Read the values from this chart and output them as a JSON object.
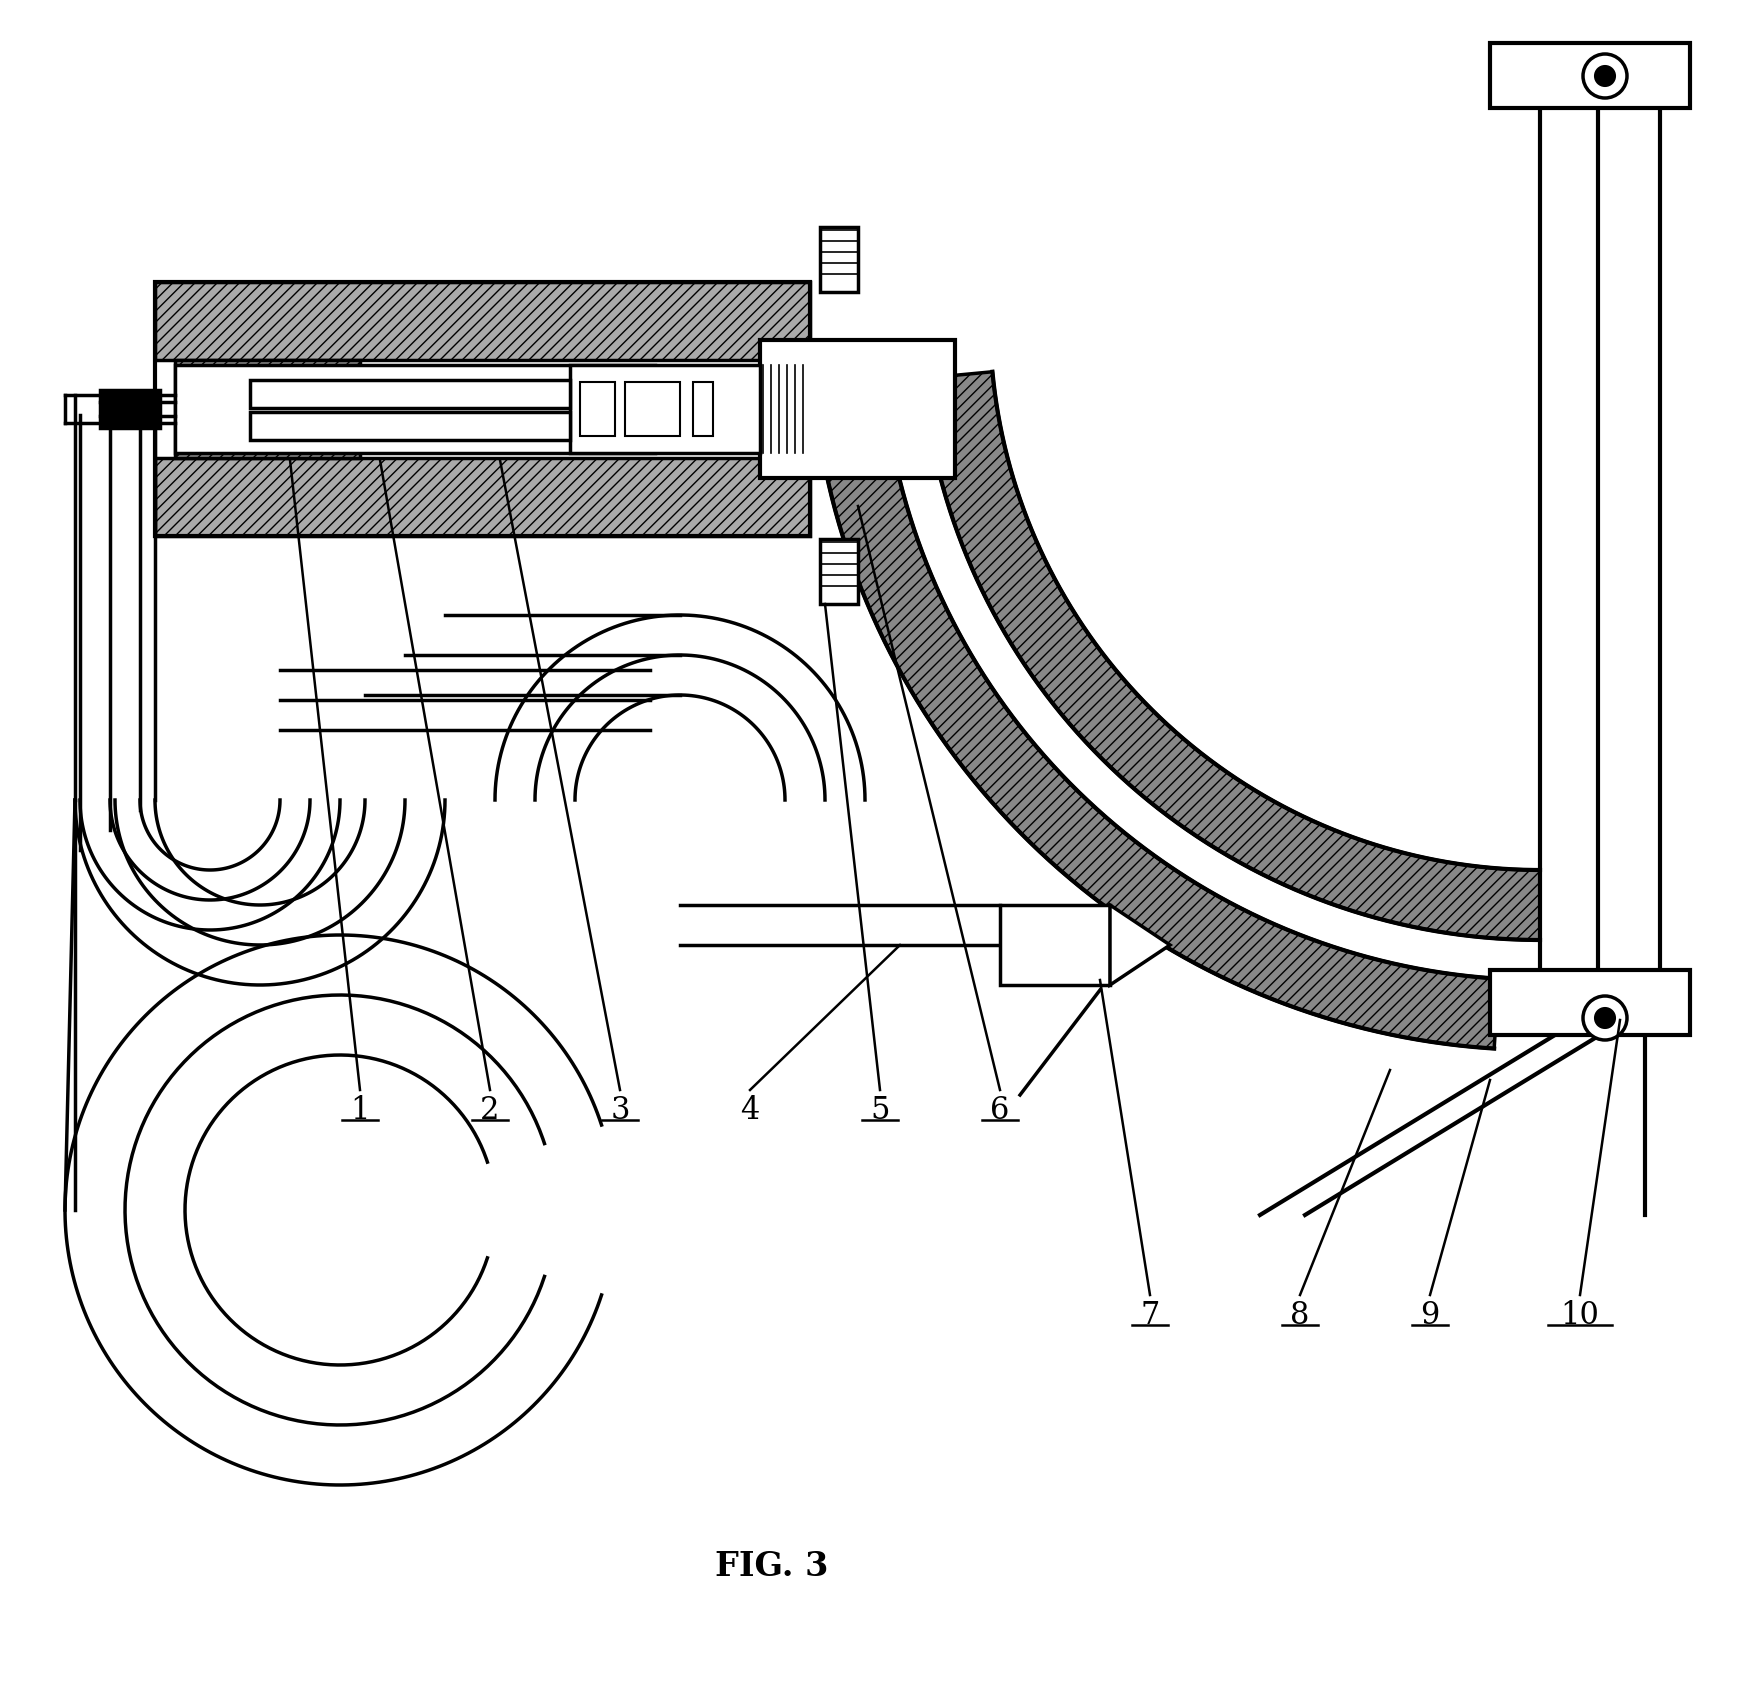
{
  "title": "FIG. 3",
  "title_fontsize": 24,
  "title_fontweight": "bold",
  "bg_color": "#ffffff",
  "line_color": "#000000",
  "figsize": [
    17.45,
    16.82
  ],
  "dpi": 100
}
